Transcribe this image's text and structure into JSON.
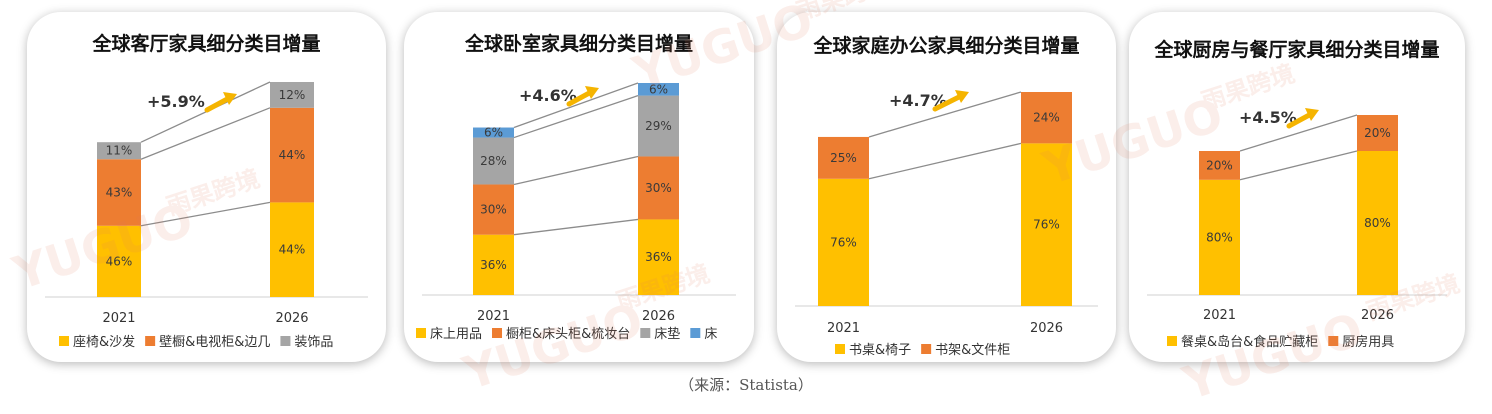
{
  "watermark": {
    "latin": "YUGUO",
    "cjk": "雨果跨境"
  },
  "source": "（来源：Statista）",
  "colors": {
    "yellow": "#FFC000",
    "orange": "#ED7D31",
    "gray": "#A5A5A5",
    "blue": "#5B9BD5",
    "arrow": "#F5B400",
    "connector": "#8c8c8c"
  },
  "chart_data": [
    {
      "type": "bar",
      "stacked": true,
      "title": "全球客厅家具细分类目增量",
      "categories": [
        "2021",
        "2026"
      ],
      "series": [
        {
          "name": "座椅&沙发",
          "color": "#FFC000",
          "values": [
            46,
            44
          ],
          "labels": [
            "46%",
            "44%"
          ]
        },
        {
          "name": "壁橱&电视柜&边几",
          "color": "#ED7D31",
          "values": [
            43,
            44
          ],
          "labels": [
            "43%",
            "44%"
          ]
        },
        {
          "name": "装饰品",
          "color": "#A5A5A5",
          "values": [
            11,
            12
          ],
          "labels": [
            "11%",
            "12%"
          ]
        }
      ],
      "totals_relative": [
        0.72,
        1.0
      ],
      "growth_label": "+5.9%",
      "legend_position": "bottom"
    },
    {
      "type": "bar",
      "stacked": true,
      "title": "全球卧室家具细分类目增量",
      "categories": [
        "2021",
        "2026"
      ],
      "series": [
        {
          "name": "床上用品",
          "color": "#FFC000",
          "values": [
            36,
            36
          ],
          "labels": [
            "36%",
            "36%"
          ]
        },
        {
          "name": "橱柜&床头柜&梳妆台",
          "color": "#ED7D31",
          "values": [
            30,
            30
          ],
          "labels": [
            "30%",
            "30%"
          ]
        },
        {
          "name": "床垫",
          "color": "#A5A5A5",
          "values": [
            28,
            29
          ],
          "labels": [
            "28%",
            "29%"
          ]
        },
        {
          "name": "床",
          "color": "#5B9BD5",
          "values": [
            6,
            6
          ],
          "labels": [
            "6%",
            "6%"
          ]
        }
      ],
      "totals_relative": [
        0.79,
        1.0
      ],
      "growth_label": "+4.6%",
      "legend_position": "bottom"
    },
    {
      "type": "bar",
      "stacked": true,
      "title": "全球家庭办公家具细分类目增量",
      "categories": [
        "2021",
        "2026"
      ],
      "series": [
        {
          "name": "书桌&椅子",
          "color": "#FFC000",
          "values": [
            76,
            76
          ],
          "labels": [
            "76%",
            "76%"
          ]
        },
        {
          "name": "书架&文件柜",
          "color": "#ED7D31",
          "values": [
            25,
            24
          ],
          "labels": [
            "25%",
            "24%"
          ]
        }
      ],
      "totals_relative": [
        0.79,
        1.0
      ],
      "growth_label": "+4.7%",
      "legend_position": "bottom"
    },
    {
      "type": "bar",
      "stacked": true,
      "title": "全球厨房与餐厅家具细分类目增量",
      "categories": [
        "2021",
        "2026"
      ],
      "series": [
        {
          "name": "餐桌&岛台&食品贮藏柜",
          "color": "#FFC000",
          "values": [
            80,
            80
          ],
          "labels": [
            "80%",
            "80%"
          ]
        },
        {
          "name": "厨房用具",
          "color": "#ED7D31",
          "values": [
            20,
            20
          ],
          "labels": [
            "20%",
            "20%"
          ]
        }
      ],
      "totals_relative": [
        0.8,
        1.0
      ],
      "growth_label": "+4.5%",
      "legend_position": "bottom"
    }
  ]
}
